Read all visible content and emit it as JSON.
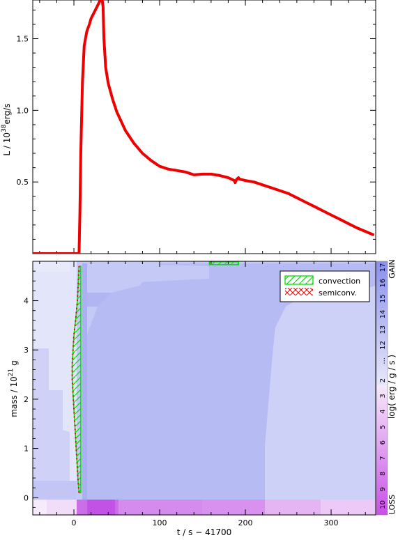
{
  "chart_data": [
    {
      "type": "line",
      "ylabel_main": "L / 10",
      "ylabel_exp": "38",
      "ylabel_unit": "erg/s",
      "xlim": [
        -48,
        352
      ],
      "ylim": [
        0.0,
        1.77
      ],
      "yticks": [
        "0.5",
        "1.0",
        "1.5"
      ],
      "ytick_values": [
        0.5,
        1.0,
        1.5
      ],
      "line_color": "#ee0000",
      "series": [
        {
          "x": [
            -48,
            -30,
            -10,
            0,
            6,
            7,
            8,
            10,
            12,
            15,
            18,
            20,
            25,
            30,
            32,
            33,
            34,
            35,
            37,
            40,
            45,
            50,
            60,
            70,
            80,
            90,
            100,
            110,
            120,
            130,
            135,
            140,
            150,
            160,
            170,
            180,
            187,
            188,
            190,
            192,
            193,
            200,
            210,
            220,
            230,
            240,
            250,
            260,
            270,
            280,
            290,
            300,
            310,
            320,
            330,
            340,
            350
          ],
          "y": [
            0.0,
            0.0,
            0.0,
            0.0,
            0.0,
            0.3,
            0.7,
            1.2,
            1.45,
            1.55,
            1.6,
            1.64,
            1.7,
            1.76,
            1.77,
            1.77,
            1.72,
            1.5,
            1.3,
            1.19,
            1.08,
            0.99,
            0.86,
            0.77,
            0.7,
            0.65,
            0.61,
            0.59,
            0.58,
            0.57,
            0.56,
            0.55,
            0.555,
            0.555,
            0.545,
            0.53,
            0.51,
            0.495,
            0.52,
            0.53,
            0.52,
            0.51,
            0.5,
            0.48,
            0.46,
            0.44,
            0.42,
            0.39,
            0.36,
            0.33,
            0.3,
            0.27,
            0.24,
            0.21,
            0.18,
            0.155,
            0.13
          ]
        }
      ]
    },
    {
      "type": "heatmap",
      "xlabel": "t / s − 41700",
      "ylabel_main": "mass / 10",
      "ylabel_exp": "21",
      "ylabel_unit": "g",
      "xlim": [
        -48,
        352
      ],
      "ylim": [
        -0.35,
        4.8
      ],
      "xticks": [
        "0",
        "100",
        "200",
        "300"
      ],
      "xtick_values": [
        0,
        100,
        200,
        300
      ],
      "yticks": [
        "0",
        "1",
        "2",
        "3",
        "4"
      ],
      "ytick_values": [
        0,
        1,
        2,
        3,
        4
      ],
      "legend": {
        "position": "top-right",
        "items": [
          {
            "label": "convection",
            "color": "#00dd00"
          },
          {
            "label": "semiconv.",
            "color": "#ee0000"
          }
        ]
      },
      "colorbar": {
        "title": "log( erg / g / s )",
        "gain_label": "GAIN",
        "loss_label": "LOSS",
        "ellipsis_label": "...",
        "gain_labels": [
          "17",
          "16",
          "15",
          "14",
          "13",
          "12",
          "..."
        ],
        "loss_labels": [
          "2",
          "3",
          "4",
          "5",
          "6",
          "7",
          "8",
          "9",
          "10"
        ]
      },
      "convection_zone": {
        "x_left": [
          6,
          5,
          4,
          3,
          2,
          1,
          0,
          -1,
          -2,
          -2,
          -1,
          0,
          2,
          4,
          6
        ],
        "x_right": [
          8,
          8,
          8,
          8,
          8,
          8,
          8,
          8,
          8,
          8,
          8,
          8,
          8,
          8,
          8
        ],
        "mass": [
          0.1,
          0.3,
          0.6,
          0.9,
          1.2,
          1.5,
          1.8,
          2.1,
          2.4,
          2.7,
          3.0,
          3.3,
          3.6,
          4.0,
          4.7
        ]
      },
      "top_convection": {
        "x_start": 158,
        "x_end": 192,
        "mass": 4.76
      }
    }
  ]
}
